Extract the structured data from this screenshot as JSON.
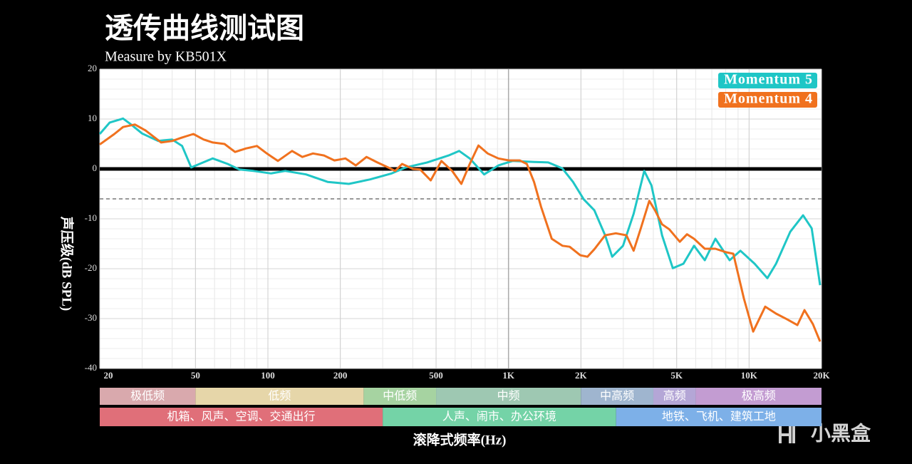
{
  "chart_data": {
    "type": "line",
    "title": "透传曲线测试图",
    "subtitle": "Measure by KB501X",
    "y_label": "声压级(dB SPL)",
    "x_label": "滚降式频率(Hz)",
    "watermark": "小黑盒",
    "xscale": "log",
    "xlim": [
      20,
      20000
    ],
    "ylim": [
      -40,
      20
    ],
    "xticks": [
      {
        "value": 20,
        "label": "20"
      },
      {
        "value": 50,
        "label": "50"
      },
      {
        "value": 100,
        "label": "100"
      },
      {
        "value": 200,
        "label": "200"
      },
      {
        "value": 500,
        "label": "500"
      },
      {
        "value": 1000,
        "label": "1K"
      },
      {
        "value": 2000,
        "label": "2K"
      },
      {
        "value": 5000,
        "label": "5K"
      },
      {
        "value": 10000,
        "label": "10K"
      },
      {
        "value": 20000,
        "label": "20K"
      }
    ],
    "yticks": [
      20,
      10,
      0,
      -10,
      -20,
      -30,
      -40
    ],
    "grid": true,
    "legend": "upper right",
    "reference_lines": [
      {
        "value": 0,
        "color": "#000000",
        "dashed": false
      },
      {
        "value": -6,
        "color": "#999999",
        "dashed": true
      }
    ],
    "series": [
      {
        "name": "Momentum 5",
        "color": "#1fc6c6",
        "x": [
          20,
          22,
          25,
          27,
          30,
          35,
          40,
          44,
          48,
          52,
          59,
          68,
          76,
          87,
          103,
          118,
          144,
          177,
          217,
          266,
          327,
          374,
          459,
          564,
          624,
          690,
          792,
          908,
          1040,
          1277,
          1462,
          1675,
          1854,
          2055,
          2275,
          2522,
          2698,
          2992,
          3311,
          3666,
          3928,
          4347,
          4820,
          5335,
          5904,
          6545,
          7246,
          8298,
          9204,
          10540,
          11915,
          12942,
          14826,
          16760,
          18200,
          19725
        ],
        "values": [
          7.0,
          9.3,
          10.1,
          8.9,
          7.1,
          5.6,
          5.9,
          4.6,
          0.3,
          1.0,
          2.1,
          1.0,
          -0.1,
          -0.4,
          -0.9,
          -0.4,
          -1.1,
          -2.6,
          -3.0,
          -2.1,
          -0.9,
          0.3,
          1.3,
          2.7,
          3.6,
          2.1,
          -1.1,
          0.7,
          1.6,
          1.4,
          1.3,
          0.1,
          -2.6,
          -6.1,
          -8.3,
          -13.3,
          -17.6,
          -15.4,
          -9.0,
          -0.4,
          -3.3,
          -13.3,
          -19.9,
          -19.0,
          -15.4,
          -18.3,
          -14.0,
          -18.3,
          -16.4,
          -19.0,
          -21.9,
          -19.0,
          -12.6,
          -9.3,
          -11.9,
          -23.3
        ]
      },
      {
        "name": "Momentum 4",
        "color": "#f0711e",
        "x": [
          20,
          23,
          25,
          28,
          31,
          36,
          40,
          44,
          49,
          54,
          59,
          66,
          73,
          81,
          90,
          99,
          110,
          126,
          139,
          154,
          171,
          189,
          210,
          232,
          257,
          285,
          316,
          338,
          361,
          401,
          429,
          475,
          526,
          583,
          637,
          690,
          750,
          819,
          908,
          1005,
          1114,
          1192,
          1277,
          1366,
          1513,
          1675,
          1795,
          1987,
          2129,
          2275,
          2522,
          2793,
          3091,
          3311,
          3547,
          3847,
          4064,
          4347,
          4656,
          5153,
          5520,
          5904,
          6545,
          7246,
          8028,
          8596,
          9520,
          10400,
          11670,
          12942,
          14330,
          15870,
          16990,
          18420,
          19725
        ],
        "values": [
          4.9,
          7.0,
          8.4,
          8.9,
          7.7,
          5.3,
          5.6,
          6.3,
          7.0,
          5.9,
          5.3,
          5.0,
          3.4,
          4.1,
          4.6,
          3.1,
          1.6,
          3.6,
          2.4,
          3.1,
          2.7,
          1.7,
          2.1,
          0.7,
          2.4,
          1.3,
          0.3,
          -0.4,
          1.0,
          0.0,
          -0.1,
          -2.3,
          1.6,
          -0.4,
          -3.0,
          1.0,
          4.7,
          3.1,
          2.1,
          1.7,
          1.7,
          1.0,
          -2.6,
          -7.6,
          -14.0,
          -15.4,
          -15.6,
          -17.3,
          -17.6,
          -16.1,
          -13.3,
          -12.9,
          -13.3,
          -16.4,
          -11.9,
          -6.4,
          -8.3,
          -11.1,
          -12.1,
          -14.6,
          -13.1,
          -14.0,
          -16.0,
          -16.0,
          -16.7,
          -17.0,
          -26.0,
          -32.6,
          -27.6,
          -29.0,
          -30.1,
          -31.3,
          -28.3,
          -31.1,
          -34.6
        ]
      }
    ],
    "bands": [
      [
        {
          "label": "极低频",
          "from": 20,
          "to": 50,
          "color": "#d9a9ad"
        },
        {
          "label": "低频",
          "from": 50,
          "to": 250,
          "color": "#e6d6a9"
        },
        {
          "label": "中低频",
          "from": 250,
          "to": 500,
          "color": "#a6d3a1"
        },
        {
          "label": "中频",
          "from": 500,
          "to": 2000,
          "color": "#9ec8b2"
        },
        {
          "label": "中高频",
          "from": 2000,
          "to": 4000,
          "color": "#9fb5cf"
        },
        {
          "label": "高频",
          "from": 4000,
          "to": 6000,
          "color": "#b4a6d6"
        },
        {
          "label": "极高频",
          "from": 6000,
          "to": 20000,
          "color": "#c39cd2"
        }
      ],
      [
        {
          "label": "机箱、风声、空调、交通出行",
          "from": 20,
          "to": 300,
          "color": "#e06f79"
        },
        {
          "label": "人声、闹市、办公环境",
          "from": 300,
          "to": 2800,
          "color": "#74d3a7"
        },
        {
          "label": "地铁、飞机、建筑工地",
          "from": 2800,
          "to": 20000,
          "color": "#7db0e8"
        }
      ]
    ]
  }
}
